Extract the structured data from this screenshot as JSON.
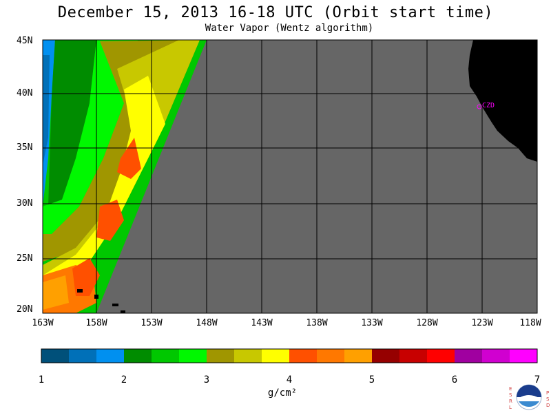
{
  "title": "December 15, 2013  16-18 UTC  (Orbit start time)",
  "subtitle": "Water Vapor (Wentz algorithm)",
  "map": {
    "lat_labels": [
      "45N",
      "40N",
      "35N",
      "30N",
      "25N",
      "20N"
    ],
    "lon_labels": [
      "163W",
      "158W",
      "153W",
      "148W",
      "143W",
      "138W",
      "133W",
      "128W",
      "123W",
      "118W"
    ],
    "place_label": "CZD",
    "colors": {
      "no_data": "#666666",
      "land": "#000000",
      "grid": "#000000",
      "place": "#ff00ff"
    }
  },
  "colorbar": {
    "tick_labels": [
      "1",
      "2",
      "3",
      "4",
      "5",
      "6",
      "7"
    ],
    "units": "g/cm²",
    "colors": [
      "#00507a",
      "#0070b8",
      "#0090f0",
      "#008c00",
      "#00c800",
      "#00f800",
      "#a09600",
      "#c8c800",
      "#ffff00",
      "#ff5000",
      "#ff7800",
      "#ffa000",
      "#960000",
      "#c80000",
      "#ff0000",
      "#a000a0",
      "#d000d0",
      "#ff00ff"
    ]
  },
  "logo": {
    "name": "noaa-logo",
    "left_letters": [
      "E",
      "S",
      "R",
      "L"
    ],
    "right_letters": [
      "P",
      "S",
      "D"
    ]
  }
}
